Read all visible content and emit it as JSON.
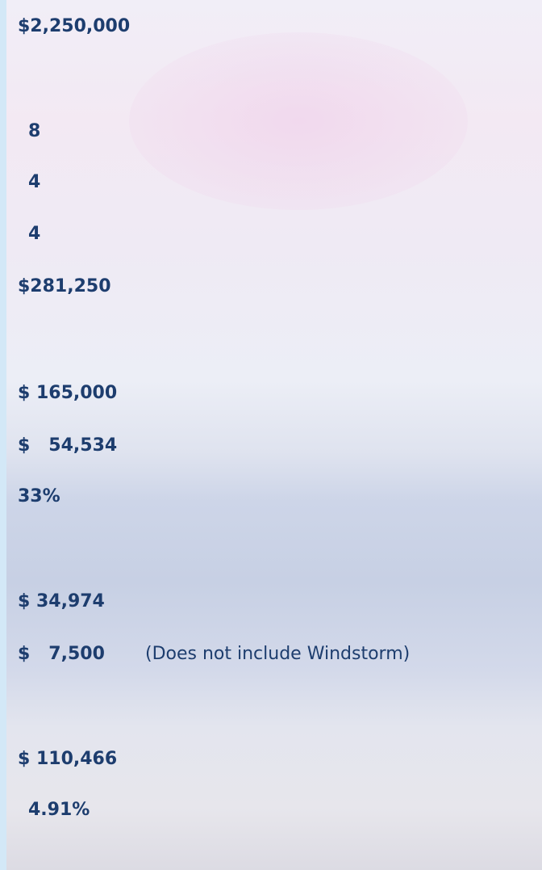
{
  "values": [
    "$2,250,000",
    "8",
    "4",
    "4",
    "$281,250",
    "$ 165,000",
    "$   54,534",
    "33%",
    "$ 34,974",
    "$   7,500",
    "$ 110,466",
    "4.91%"
  ],
  "note": "(Does not include Windstorm)"
}
